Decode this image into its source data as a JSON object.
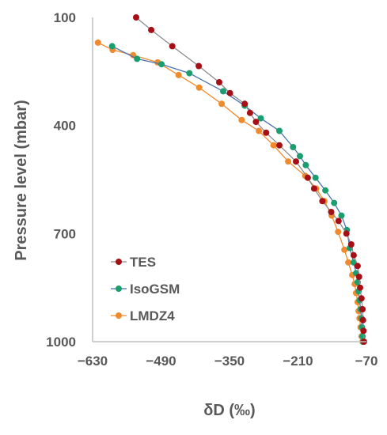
{
  "chart_data": {
    "type": "line",
    "title": "",
    "xlabel": "δD (‰)",
    "ylabel": "Pressure level  (mbar)",
    "xlim": [
      -630,
      -70
    ],
    "ylim": [
      1000,
      100
    ],
    "y_inverted": true,
    "xticks": [
      "-630",
      "-490",
      "-350",
      "-210",
      "-70"
    ],
    "yticks": [
      "100",
      "400",
      "700",
      "1000"
    ],
    "grid": false,
    "legend_position": "lower-left",
    "series": [
      {
        "name": "TES",
        "color": "#a50f15",
        "line_color": "#8c8c8c",
        "points": [
          [
            -541,
            100
          ],
          [
            -510,
            135
          ],
          [
            -467,
            180
          ],
          [
            -413,
            235
          ],
          [
            -371,
            280
          ],
          [
            -349,
            310
          ],
          [
            -319,
            340
          ],
          [
            -308,
            365
          ],
          [
            -296,
            390
          ],
          [
            -275,
            420
          ],
          [
            -248,
            455
          ],
          [
            -214,
            500
          ],
          [
            -190,
            545
          ],
          [
            -177,
            575
          ],
          [
            -160,
            610
          ],
          [
            -142,
            640
          ],
          [
            -127,
            665
          ],
          [
            -111,
            700
          ],
          [
            -101,
            730
          ],
          [
            -96,
            760
          ],
          [
            -88,
            790
          ],
          [
            -85,
            820
          ],
          [
            -83,
            850
          ],
          [
            -80,
            880
          ],
          [
            -78,
            910
          ],
          [
            -77,
            940
          ],
          [
            -76,
            970
          ],
          [
            -75,
            1000
          ]
        ]
      },
      {
        "name": "IsoGSM",
        "color": "#1a9e6f",
        "line_color": "#4a72b0",
        "points": [
          [
            -590,
            180
          ],
          [
            -539,
            215
          ],
          [
            -489,
            230
          ],
          [
            -432,
            255
          ],
          [
            -363,
            305
          ],
          [
            -319,
            345
          ],
          [
            -286,
            380
          ],
          [
            -248,
            415
          ],
          [
            -220,
            460
          ],
          [
            -206,
            485
          ],
          [
            -194,
            510
          ],
          [
            -174,
            545
          ],
          [
            -154,
            580
          ],
          [
            -136,
            615
          ],
          [
            -121,
            650
          ],
          [
            -110,
            690
          ],
          [
            -104,
            740
          ],
          [
            -96,
            780
          ],
          [
            -91,
            810
          ],
          [
            -88,
            835
          ],
          [
            -86,
            860
          ],
          [
            -84,
            885
          ],
          [
            -82,
            910
          ],
          [
            -80,
            935
          ],
          [
            -79,
            960
          ],
          [
            -78,
            985
          ],
          [
            -77,
            1000
          ]
        ]
      },
      {
        "name": "LMDZ4",
        "color": "#f08a2e",
        "line_color": "#f08a2e",
        "points": [
          [
            -619,
            170
          ],
          [
            -589,
            190
          ],
          [
            -547,
            205
          ],
          [
            -497,
            225
          ],
          [
            -454,
            260
          ],
          [
            -412,
            295
          ],
          [
            -366,
            340
          ],
          [
            -325,
            385
          ],
          [
            -290,
            415
          ],
          [
            -260,
            455
          ],
          [
            -230,
            500
          ],
          [
            -195,
            540
          ],
          [
            -173,
            575
          ],
          [
            -156,
            610
          ],
          [
            -141,
            650
          ],
          [
            -128,
            695
          ],
          [
            -115,
            745
          ],
          [
            -107,
            780
          ],
          [
            -99,
            815
          ],
          [
            -94,
            840
          ],
          [
            -91,
            865
          ],
          [
            -88,
            890
          ],
          [
            -86,
            915
          ],
          [
            -84,
            935
          ],
          [
            -82,
            960
          ],
          [
            -80,
            985
          ],
          [
            -78,
            1000
          ]
        ]
      }
    ]
  }
}
